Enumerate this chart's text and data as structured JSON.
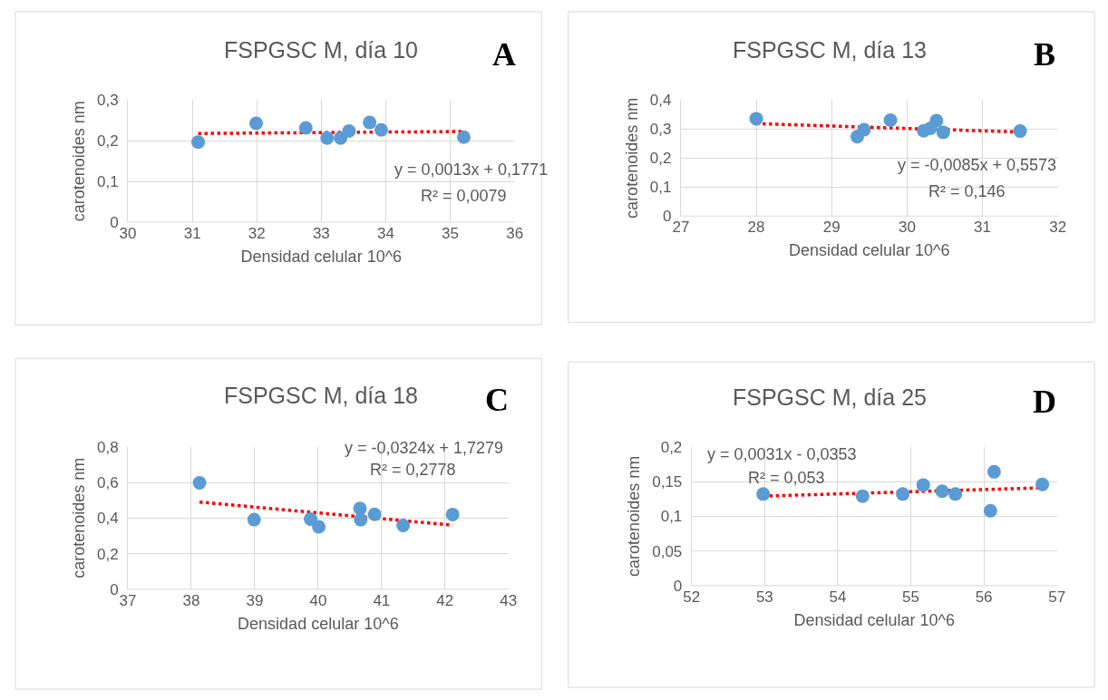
{
  "chart_data": [
    {
      "type": "scatter",
      "title": "FSPGSC M, día 10",
      "xlabel": "Densidad celular 10^6",
      "ylabel": "carotenoides nm",
      "annotations": [
        "A",
        "y = 0,0013x + 0,1771",
        "R² = 0,0079"
      ],
      "xlim": [
        30,
        36
      ],
      "xticks": [
        30,
        31,
        32,
        33,
        34,
        35,
        36
      ],
      "ylim": [
        0,
        0.3
      ],
      "yticks": [
        0,
        {
          "value": 0.1,
          "label": "0,1"
        },
        {
          "value": 0.2,
          "label": "0,2"
        },
        {
          "value": 0.3,
          "label": "0,3"
        }
      ],
      "grid": true,
      "series": [
        {
          "color": "#5b9bd5",
          "marker": "circle",
          "x": [
            31.09,
            31.99,
            32.76,
            33.09,
            33.3,
            33.43,
            33.75,
            33.93,
            35.21
          ],
          "values": [
            0.197,
            0.243,
            0.232,
            0.207,
            0.207,
            0.224,
            0.245,
            0.227,
            0.209
          ]
        },
        {
          "type": "line",
          "color": "#ff0000",
          "line_style": "dotted",
          "marker": "none",
          "x": [
            31.09,
            35.21
          ],
          "values": [
            0.218,
            0.223
          ]
        }
      ]
    },
    {
      "type": "scatter",
      "title": "FSPGSC M, día 13",
      "xlabel": "Densidad celular 10^6",
      "ylabel": "carotenoides nm",
      "annotations": [
        "B",
        "y = -0,0085x + 0,5573",
        "R² = 0,146"
      ],
      "xlim": [
        27,
        32
      ],
      "xticks": [
        27,
        28,
        29,
        30,
        31,
        32
      ],
      "ylim": [
        0,
        0.4
      ],
      "yticks": [
        0,
        {
          "value": 0.1,
          "label": "0,1"
        },
        {
          "value": 0.2,
          "label": "0,2"
        },
        {
          "value": 0.3,
          "label": "0,3"
        },
        {
          "value": 0.4,
          "label": "0,4"
        }
      ],
      "grid": true,
      "series": [
        {
          "color": "#5b9bd5",
          "marker": "circle",
          "x": [
            28.0,
            29.34,
            29.43,
            29.78,
            30.22,
            30.31,
            30.39,
            30.48,
            31.5
          ],
          "values": [
            0.336,
            0.274,
            0.298,
            0.331,
            0.294,
            0.303,
            0.329,
            0.289,
            0.293
          ]
        },
        {
          "type": "line",
          "color": "#ff0000",
          "line_style": "dotted",
          "marker": "none",
          "x": [
            28.0,
            31.5
          ],
          "values": [
            0.319,
            0.29
          ]
        }
      ]
    },
    {
      "type": "scatter",
      "title": "FSPGSC M, día 18",
      "xlabel": "Densidad celular 10^6",
      "ylabel": "carotenoides nm",
      "annotations": [
        "C",
        "y = -0,0324x + 1,7279",
        "R² = 0,2778"
      ],
      "xlim": [
        37,
        43
      ],
      "xticks": [
        37,
        38,
        39,
        40,
        41,
        42,
        43
      ],
      "ylim": [
        0,
        0.8
      ],
      "yticks": [
        0,
        {
          "value": 0.2,
          "label": "0,2"
        },
        {
          "value": 0.4,
          "label": "0,4"
        },
        {
          "value": 0.6,
          "label": "0,6"
        },
        {
          "value": 0.8,
          "label": "0,8"
        }
      ],
      "grid": true,
      "series": [
        {
          "color": "#5b9bd5",
          "marker": "circle",
          "x": [
            38.13,
            38.99,
            39.88,
            40.01,
            40.66,
            40.67,
            40.89,
            41.34,
            42.12
          ],
          "values": [
            0.598,
            0.391,
            0.394,
            0.351,
            0.454,
            0.391,
            0.421,
            0.358,
            0.42
          ]
        },
        {
          "type": "line",
          "color": "#ff0000",
          "line_style": "dotted",
          "marker": "none",
          "x": [
            38.13,
            42.12
          ],
          "values": [
            0.49,
            0.36
          ]
        }
      ]
    },
    {
      "type": "scatter",
      "title": "FSPGSC M, día 25",
      "xlabel": "Densidad celular 10^6",
      "ylabel": "carotenoides nm",
      "annotations": [
        "D",
        "y = 0,0031x - 0,0353",
        "R² = 0,053"
      ],
      "xlim": [
        52,
        57
      ],
      "xticks": [
        52,
        53,
        54,
        55,
        56,
        57
      ],
      "ylim": [
        0,
        0.2
      ],
      "yticks": [
        0,
        {
          "value": 0.05,
          "label": "0,05"
        },
        {
          "value": 0.1,
          "label": "0,1"
        },
        {
          "value": 0.15,
          "label": "0,15"
        },
        {
          "value": 0.2,
          "label": "0,2"
        }
      ],
      "grid": true,
      "series": [
        {
          "color": "#5b9bd5",
          "marker": "circle",
          "x": [
            52.98,
            54.34,
            54.89,
            55.17,
            55.43,
            55.61,
            56.09,
            56.14,
            56.8
          ],
          "values": [
            0.132,
            0.129,
            0.132,
            0.145,
            0.136,
            0.132,
            0.108,
            0.164,
            0.146
          ]
        },
        {
          "type": "line",
          "color": "#ff0000",
          "line_style": "dotted",
          "marker": "none",
          "x": [
            52.98,
            56.8
          ],
          "values": [
            0.129,
            0.141
          ]
        }
      ]
    }
  ]
}
